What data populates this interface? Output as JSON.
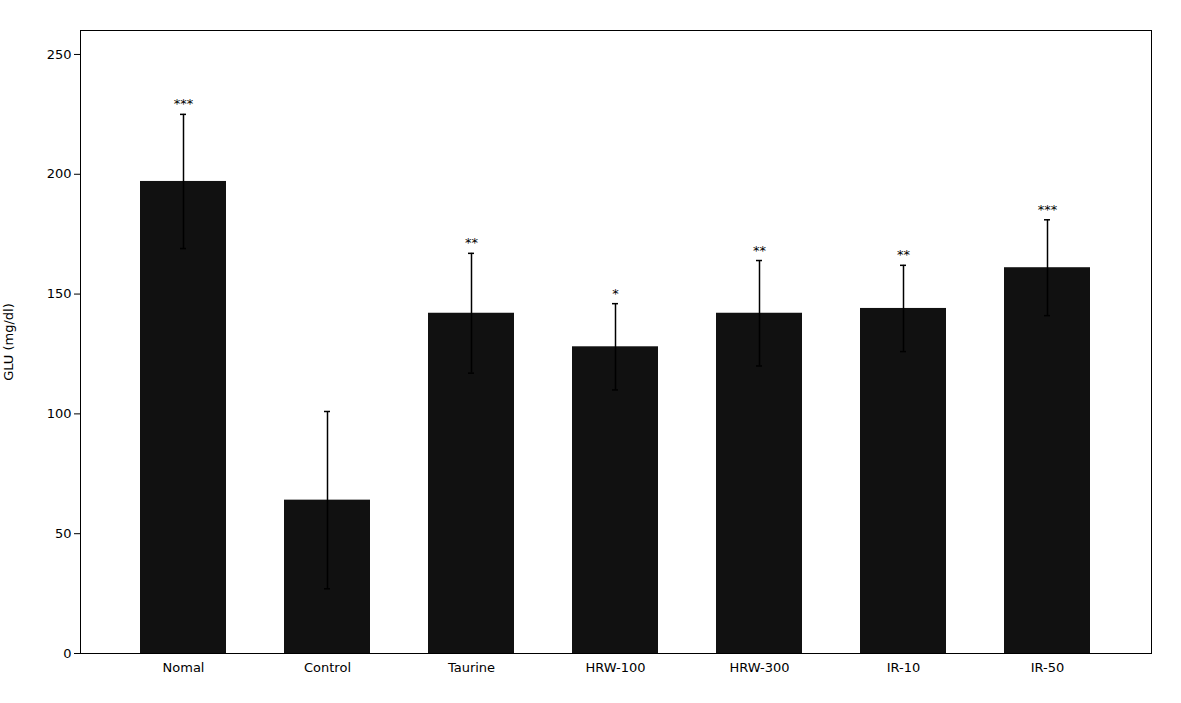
{
  "chart_data": {
    "type": "bar",
    "categories": [
      "Nomal",
      "Control",
      "Taurine",
      "HRW-100",
      "HRW-300",
      "IR-10",
      "IR-50"
    ],
    "values": [
      197.0,
      64.0,
      142.0,
      128.0,
      142.0,
      144.0,
      161.0
    ],
    "errors": [
      28.0,
      37.0,
      25.0,
      18.0,
      22.0,
      18.0,
      20.0
    ],
    "significance": [
      "***",
      null,
      "**",
      "*",
      "**",
      "**",
      "***"
    ],
    "color": "#111111",
    "ylabel": "GLU (mg/dl)",
    "ylim": [
      0,
      260
    ],
    "yticks": [
      0,
      50,
      100,
      150,
      200,
      250
    ],
    "grid": false
  }
}
